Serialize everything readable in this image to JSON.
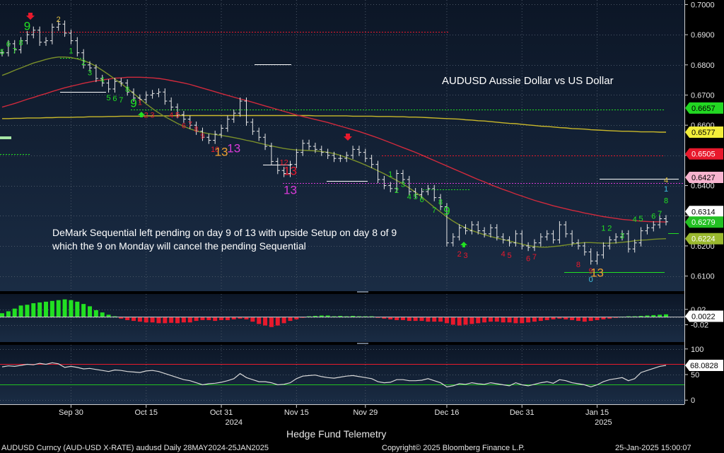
{
  "chart_data": {
    "type": "line",
    "title": "AUDUSD Aussie Dollar vs US Dollar",
    "annotation": "DeMark Sequential left pending on day 9 of 13 with upside Setup on day 8 of 9 which the 9 on Monday will cancel the pending Sequential",
    "watermark": "Hedge Fund Telemetry",
    "footer_left": "AUDUSD Curncy (AUD-USD X-RATE) audusd  Daily 28MAY2024-25JAN2025",
    "footer_center": "Copyright© 2025 Bloomberg Finance L.P.",
    "footer_right": "25-Jan-2025 15:00:07",
    "x_axis": {
      "ticks": [
        "Sep 30",
        "Oct 15",
        "Oct 31",
        "Nov 15",
        "Nov 29",
        "Dec 16",
        "Dec 31",
        "Jan 15"
      ],
      "years": [
        "2024",
        "2025"
      ]
    },
    "price_panel": {
      "ylim": [
        0.605,
        0.7015
      ],
      "y_ticks": [
        "0.7000",
        "0.6900",
        "0.6800",
        "0.6700",
        "0.6600",
        "0.6500",
        "0.6400",
        "0.6300",
        "0.6200",
        "0.6100"
      ],
      "close": [
        0.684,
        0.687,
        0.685,
        0.688,
        0.69,
        0.6915,
        0.6875,
        0.688,
        0.6925,
        0.6935,
        0.6905,
        0.688,
        0.684,
        0.68,
        0.679,
        0.6755,
        0.674,
        0.672,
        0.6745,
        0.674,
        0.671,
        0.669,
        0.6685,
        0.67,
        0.6705,
        0.671,
        0.668,
        0.666,
        0.6635,
        0.662,
        0.66,
        0.658,
        0.656,
        0.655,
        0.657,
        0.659,
        0.662,
        0.664,
        0.668,
        0.661,
        0.658,
        0.656,
        0.653,
        0.648,
        0.645,
        0.644,
        0.647,
        0.651,
        0.654,
        0.653,
        0.652,
        0.651,
        0.65,
        0.649,
        0.649,
        0.65,
        0.652,
        0.651,
        0.649,
        0.647,
        0.642,
        0.64,
        0.639,
        0.644,
        0.642,
        0.638,
        0.637,
        0.638,
        0.639,
        0.636,
        0.633,
        0.621,
        0.623,
        0.626,
        0.625,
        0.627,
        0.625,
        0.624,
        0.626,
        0.623,
        0.622,
        0.621,
        0.624,
        0.62,
        0.6195,
        0.621,
        0.623,
        0.624,
        0.622,
        0.627,
        0.624,
        0.621,
        0.62,
        0.618,
        0.615,
        0.617,
        0.62,
        0.622,
        0.623,
        0.624,
        0.619,
        0.621,
        0.625,
        0.626,
        0.627,
        0.629,
        0.628
      ],
      "sma_short": [
        0.6765,
        0.6773,
        0.6782,
        0.679,
        0.6798,
        0.6806,
        0.6812,
        0.6818,
        0.6823,
        0.6826,
        0.6826,
        0.6824,
        0.682,
        0.6814,
        0.6806,
        0.6795,
        0.6782,
        0.6768,
        0.6753,
        0.6738,
        0.6722,
        0.6705,
        0.6688,
        0.6671,
        0.6655,
        0.6641,
        0.6628,
        0.6617,
        0.6606,
        0.6596,
        0.6588,
        0.6581,
        0.6576,
        0.6572,
        0.6569,
        0.6566,
        0.6563,
        0.6559,
        0.6555,
        0.655,
        0.6546,
        0.6541,
        0.6536,
        0.6531,
        0.6527,
        0.6523,
        0.652,
        0.6518,
        0.6517,
        0.6516,
        0.6515,
        0.6513,
        0.651,
        0.6506,
        0.65,
        0.6493,
        0.6485,
        0.6477,
        0.6468,
        0.6459,
        0.6449,
        0.6439,
        0.6428,
        0.6417,
        0.6405,
        0.6392,
        0.6378,
        0.6362,
        0.6345,
        0.6328,
        0.6312,
        0.6296,
        0.6282,
        0.627,
        0.626,
        0.6251,
        0.6244,
        0.6237,
        0.6231,
        0.6226,
        0.6221,
        0.6216,
        0.6211,
        0.6206,
        0.6201,
        0.6198,
        0.6196,
        0.6196,
        0.6198,
        0.62,
        0.6203,
        0.6206,
        0.6209,
        0.6211,
        0.6211,
        0.621,
        0.6209,
        0.6209,
        0.621,
        0.6212,
        0.6214,
        0.6217,
        0.6219,
        0.622,
        0.6222,
        0.6223,
        0.6224
      ],
      "sma_mid": [
        0.666,
        0.6666,
        0.6672,
        0.6679,
        0.6686,
        0.6692,
        0.6699,
        0.6705,
        0.6712,
        0.6718,
        0.6724,
        0.6729,
        0.6734,
        0.6739,
        0.6743,
        0.6747,
        0.675,
        0.6753,
        0.6756,
        0.6757,
        0.6759,
        0.6759,
        0.6759,
        0.6758,
        0.6757,
        0.6755,
        0.6752,
        0.6748,
        0.6744,
        0.674,
        0.6735,
        0.6729,
        0.6723,
        0.6717,
        0.6711,
        0.6705,
        0.6699,
        0.6693,
        0.6687,
        0.6682,
        0.6676,
        0.667,
        0.6664,
        0.6658,
        0.6652,
        0.6646,
        0.664,
        0.6634,
        0.6629,
        0.6624,
        0.6619,
        0.6614,
        0.6609,
        0.6603,
        0.6597,
        0.6591,
        0.6585,
        0.6579,
        0.6572,
        0.6565,
        0.6558,
        0.655,
        0.6542,
        0.6534,
        0.6526,
        0.6518,
        0.651,
        0.6501,
        0.6492,
        0.6483,
        0.6474,
        0.6465,
        0.6456,
        0.6447,
        0.6438,
        0.6429,
        0.642,
        0.6412,
        0.6403,
        0.6395,
        0.6387,
        0.638,
        0.6372,
        0.6365,
        0.6358,
        0.6351,
        0.6345,
        0.6339,
        0.6333,
        0.6328,
        0.6323,
        0.6318,
        0.6314,
        0.6309,
        0.6305,
        0.6301,
        0.6297,
        0.6294,
        0.6291,
        0.6288,
        0.6286,
        0.6284,
        0.6282,
        0.6281,
        0.628,
        0.628,
        0.6279
      ],
      "sma_long": [
        0.6622,
        0.6622,
        0.6623,
        0.6623,
        0.6624,
        0.6624,
        0.6624,
        0.6625,
        0.6625,
        0.6626,
        0.6626,
        0.6626,
        0.6627,
        0.6627,
        0.6628,
        0.6628,
        0.6628,
        0.6629,
        0.6629,
        0.663,
        0.663,
        0.663,
        0.663,
        0.6631,
        0.6631,
        0.6631,
        0.6631,
        0.6631,
        0.6632,
        0.6632,
        0.6632,
        0.6632,
        0.6632,
        0.6632,
        0.6632,
        0.6632,
        0.6632,
        0.6632,
        0.6632,
        0.6632,
        0.6632,
        0.6632,
        0.6632,
        0.6632,
        0.6632,
        0.6632,
        0.6632,
        0.6632,
        0.6632,
        0.6632,
        0.6631,
        0.6631,
        0.6631,
        0.6631,
        0.6631,
        0.6631,
        0.663,
        0.663,
        0.663,
        0.663,
        0.6629,
        0.6629,
        0.6629,
        0.6628,
        0.6628,
        0.6627,
        0.6627,
        0.6626,
        0.6625,
        0.6624,
        0.6623,
        0.6622,
        0.6621,
        0.662,
        0.6618,
        0.6617,
        0.6615,
        0.6614,
        0.6612,
        0.661,
        0.6608,
        0.6606,
        0.6605,
        0.6603,
        0.6601,
        0.6599,
        0.6597,
        0.6596,
        0.6594,
        0.6592,
        0.6591,
        0.6589,
        0.6588,
        0.6587,
        0.6585,
        0.6584,
        0.6583,
        0.6582,
        0.6581,
        0.658,
        0.658,
        0.6579,
        0.6578,
        0.6578,
        0.6578,
        0.6577,
        0.6577
      ],
      "level_labels": [
        {
          "label": "0.6657",
          "value": 0.6657,
          "color": "#22d822",
          "text_color": "#000000"
        },
        {
          "label": "0.6577",
          "value": 0.6577,
          "color": "#f2ee3a",
          "text_color": "#000000"
        },
        {
          "label": "0.6505",
          "value": 0.6505,
          "color": "#e8192c",
          "text_color": "#ffffff"
        },
        {
          "label": "0.6427",
          "value": 0.6427,
          "color": "#f7b4cf",
          "text_color": "#000000"
        },
        {
          "label": "0.6314",
          "value": 0.6314,
          "color": "#ffffff",
          "text_color": "#000000"
        },
        {
          "label": "0.6279",
          "value": 0.6279,
          "color": "#22c022",
          "text_color": "#ffffff"
        },
        {
          "label": "0.6224",
          "value": 0.6224,
          "color": "#9ab82e",
          "text_color": "#ffffff"
        }
      ],
      "demark_labels": [
        {
          "text": "5",
          "i": 0,
          "price": 0.6835,
          "color": "#22e022"
        },
        {
          "text": "6",
          "i": 1,
          "price": 0.686,
          "color": "#22e022"
        },
        {
          "text": "7",
          "i": 2,
          "price": 0.6838,
          "color": "#22e022"
        },
        {
          "text": "8",
          "i": 3,
          "price": 0.6865,
          "color": "#22e022"
        },
        {
          "text": "9",
          "i": 4,
          "price": 0.6915,
          "color": "#22e022",
          "big": true
        },
        {
          "text": "2",
          "i": 9,
          "price": 0.6942,
          "color": "#e0c040"
        },
        {
          "text": "1",
          "i": 11,
          "price": 0.6838,
          "color": "#22e022"
        },
        {
          "text": "2",
          "i": 13,
          "price": 0.68,
          "color": "#22e022"
        },
        {
          "text": "3",
          "i": 14,
          "price": 0.6765,
          "color": "#22e022"
        },
        {
          "text": "4",
          "i": 16,
          "price": 0.6742,
          "color": "#22e022"
        },
        {
          "text": "5",
          "i": 17,
          "price": 0.6682,
          "color": "#22e022"
        },
        {
          "text": "6",
          "i": 18,
          "price": 0.668,
          "color": "#22e022"
        },
        {
          "text": "7",
          "i": 19,
          "price": 0.6675,
          "color": "#22e022"
        },
        {
          "text": "8",
          "i": 20,
          "price": 0.671,
          "color": "#22e022"
        },
        {
          "text": "9",
          "i": 21,
          "price": 0.666,
          "color": "#22e022",
          "big": true
        },
        {
          "text": "1",
          "i": 22,
          "price": 0.6667,
          "color": "#e8192c"
        },
        {
          "text": "2",
          "i": 23,
          "price": 0.6625,
          "color": "#e8192c"
        },
        {
          "text": "3",
          "i": 24,
          "price": 0.6625,
          "color": "#e8192c"
        },
        {
          "text": "4",
          "i": 27,
          "price": 0.6625,
          "color": "#e8192c"
        },
        {
          "text": "5",
          "i": 28,
          "price": 0.6625,
          "color": "#e8192c"
        },
        {
          "text": "6",
          "i": 29,
          "price": 0.659,
          "color": "#e8192c"
        },
        {
          "text": "7",
          "i": 30,
          "price": 0.6595,
          "color": "#e8192c"
        },
        {
          "text": "8",
          "i": 31,
          "price": 0.6578,
          "color": "#e8192c"
        },
        {
          "text": "9",
          "i": 32,
          "price": 0.6556,
          "color": "#e8192c"
        },
        {
          "text": "10",
          "i": 34,
          "price": 0.6512,
          "color": "#e8192c"
        },
        {
          "text": "13",
          "i": 35,
          "price": 0.6498,
          "color": "#f0a030",
          "big": true
        },
        {
          "text": "13",
          "i": 37,
          "price": 0.651,
          "color": "#d83ad8",
          "big": true
        },
        {
          "text": "12",
          "i": 45,
          "price": 0.6468,
          "color": "#e8192c"
        },
        {
          "text": "13",
          "i": 46,
          "price": 0.6435,
          "color": "#e8192c",
          "big": true
        },
        {
          "text": "13",
          "i": 46,
          "price": 0.6372,
          "color": "#d83ad8",
          "big": true
        },
        {
          "text": "1",
          "i": 62,
          "price": 0.643,
          "color": "#22e022"
        },
        {
          "text": "2",
          "i": 63,
          "price": 0.6375,
          "color": "#22e022"
        },
        {
          "text": "3",
          "i": 64,
          "price": 0.6395,
          "color": "#22e022"
        },
        {
          "text": "4",
          "i": 65,
          "price": 0.6355,
          "color": "#22e022"
        },
        {
          "text": "5",
          "i": 66,
          "price": 0.6355,
          "color": "#22e022"
        },
        {
          "text": "6",
          "i": 67,
          "price": 0.6345,
          "color": "#22e022"
        },
        {
          "text": "7",
          "i": 69,
          "price": 0.631,
          "color": "#22e022"
        },
        {
          "text": "8",
          "i": 70,
          "price": 0.6337,
          "color": "#22e022"
        },
        {
          "text": "9",
          "i": 71,
          "price": 0.6303,
          "color": "#22e022",
          "big": true
        },
        {
          "text": "2",
          "i": 73,
          "price": 0.6165,
          "color": "#e8192c"
        },
        {
          "text": "3",
          "i": 74,
          "price": 0.616,
          "color": "#e8192c"
        },
        {
          "text": "4",
          "i": 80,
          "price": 0.6165,
          "color": "#e8192c"
        },
        {
          "text": "5",
          "i": 81,
          "price": 0.616,
          "color": "#e8192c"
        },
        {
          "text": "6",
          "i": 84,
          "price": 0.615,
          "color": "#e8192c"
        },
        {
          "text": "7",
          "i": 85,
          "price": 0.6155,
          "color": "#e8192c"
        },
        {
          "text": "8",
          "i": 92,
          "price": 0.613,
          "color": "#e8192c"
        },
        {
          "text": "9",
          "i": 94,
          "price": 0.6108,
          "color": "#e8192c"
        },
        {
          "text": "13",
          "i": 95,
          "price": 0.6098,
          "color": "#f0a030",
          "big": true
        },
        {
          "text": "0",
          "i": 94,
          "price": 0.608,
          "color": "#40c0e0"
        },
        {
          "text": "1",
          "i": 96,
          "price": 0.625,
          "color": "#22e022"
        },
        {
          "text": "2",
          "i": 97,
          "price": 0.625,
          "color": "#22e022"
        },
        {
          "text": "3",
          "i": 99,
          "price": 0.6225,
          "color": "#22e022"
        },
        {
          "text": "4",
          "i": 101,
          "price": 0.628,
          "color": "#22e022"
        },
        {
          "text": "5",
          "i": 102,
          "price": 0.6282,
          "color": "#22e022"
        },
        {
          "text": "6",
          "i": 104,
          "price": 0.629,
          "color": "#22e022"
        },
        {
          "text": "7",
          "i": 105,
          "price": 0.6298,
          "color": "#22e022"
        },
        {
          "text": "8",
          "i": 106,
          "price": 0.6342,
          "color": "#22e022"
        },
        {
          "text": "1",
          "i": 106,
          "price": 0.638,
          "color": "#40c0e0"
        },
        {
          "text": "4",
          "i": 106,
          "price": 0.641,
          "color": "#e0c040"
        }
      ]
    },
    "macd_panel": {
      "ylim": [
        -0.0065,
        0.006
      ],
      "y_ticks": [
        "0.02",
        "0.00",
        "-0.02"
      ],
      "last_label": "0.0022",
      "histogram": [
        0.001,
        0.0015,
        0.0022,
        0.003,
        0.0032,
        0.0036,
        0.0038,
        0.004,
        0.0042,
        0.0044,
        0.0046,
        0.0044,
        0.004,
        0.0034,
        0.0028,
        0.0018,
        0.0012,
        0.0006,
        0.0002,
        -0.0004,
        -0.0008,
        -0.001,
        -0.0012,
        -0.0014,
        -0.0014,
        -0.0016,
        -0.0016,
        -0.0015,
        -0.0016,
        -0.0014,
        -0.0014,
        -0.001,
        -0.0008,
        -0.0008,
        -0.001,
        -0.0008,
        -0.0008,
        -0.0006,
        -0.0004,
        -0.0006,
        -0.0012,
        -0.0018,
        -0.0022,
        -0.0026,
        -0.0022,
        -0.0016,
        -0.001,
        -0.0006,
        -0.0002,
        0.0002,
        0.0003,
        0.0004,
        0.0004,
        0.0002,
        0.0003,
        0.0002,
        0.0003,
        0.0002,
        0.0002,
        0.0002,
        -0.0002,
        -0.0004,
        -0.0006,
        -0.0008,
        -0.0008,
        -0.001,
        -0.001,
        -0.001,
        -0.0012,
        -0.0012,
        -0.0012,
        -0.0016,
        -0.002,
        -0.0022,
        -0.002,
        -0.0018,
        -0.0016,
        -0.0014,
        -0.0012,
        -0.0012,
        -0.0014,
        -0.0014,
        -0.0016,
        -0.0016,
        -0.0014,
        -0.0012,
        -0.001,
        -0.0008,
        -0.0006,
        -0.0004,
        -0.0006,
        -0.0008,
        -0.001,
        -0.0012,
        -0.001,
        -0.0008,
        -0.0006,
        -0.0004,
        -0.0002,
        0.0001,
        0.0002,
        0.0002,
        0.0003,
        0.0004,
        0.0005,
        0.0006,
        0.0007
      ]
    },
    "rsi_panel": {
      "ylim": [
        -8,
        108
      ],
      "y_ticks": [
        "100",
        "50",
        "0"
      ],
      "last_label": "68.0828",
      "upper": 70,
      "lower": 30,
      "values": [
        65,
        67,
        66,
        68,
        70,
        69,
        72,
        70,
        73,
        71,
        64,
        66,
        64,
        61,
        62,
        60,
        58,
        56,
        59,
        58,
        56,
        55,
        54,
        57,
        58,
        56,
        52,
        48,
        44,
        40,
        38,
        34,
        30,
        32,
        33,
        35,
        38,
        42,
        52,
        44,
        40,
        36,
        36,
        34,
        30,
        31,
        34,
        42,
        47,
        48,
        49,
        46,
        44,
        43,
        45,
        47,
        48,
        46,
        44,
        42,
        36,
        34,
        35,
        40,
        40,
        38,
        38,
        39,
        42,
        38,
        34,
        26,
        28,
        32,
        31,
        34,
        32,
        31,
        34,
        32,
        30,
        28,
        34,
        30,
        28,
        31,
        34,
        36,
        33,
        40,
        38,
        34,
        32,
        30,
        26,
        30,
        36,
        40,
        42,
        44,
        38,
        42,
        54,
        58,
        62,
        66,
        68
      ]
    }
  }
}
